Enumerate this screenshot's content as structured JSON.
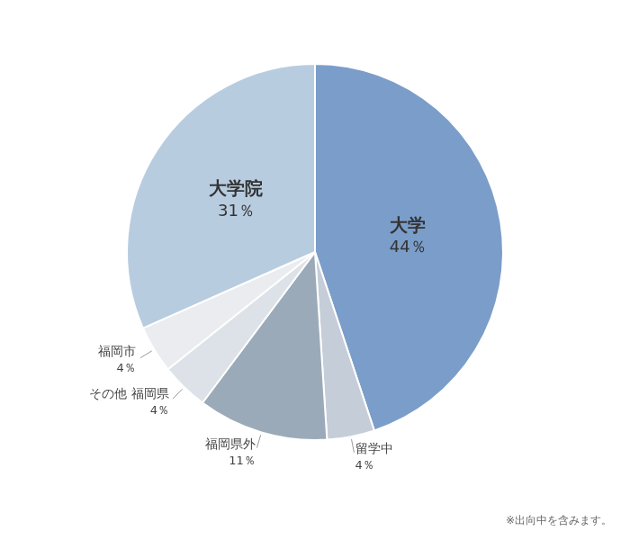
{
  "chart_data": {
    "type": "pie",
    "categories": [
      "大学",
      "留学中",
      "福岡県外",
      "その他 福岡県",
      "福岡市",
      "大学院"
    ],
    "values": [
      44,
      4,
      11,
      4,
      4,
      31
    ],
    "value_labels": [
      "44％",
      "4％",
      "11％",
      "4％",
      "4％",
      "31％"
    ],
    "colors": [
      "#7b9dc9",
      "#c5cdd8",
      "#9baab8",
      "#dde2e8",
      "#eaecef",
      "#b8cce0"
    ],
    "data_labels": true,
    "annotations": [
      "※出向中を含みます。"
    ]
  }
}
